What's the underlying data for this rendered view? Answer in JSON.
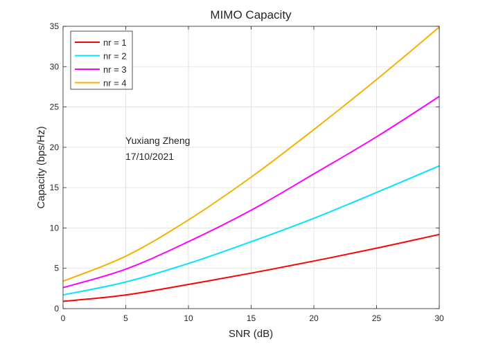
{
  "chart_data": {
    "type": "line",
    "title": "MIMO Capacity",
    "xlabel": "SNR (dB)",
    "ylabel": "Capacity (bps/Hz)",
    "xlim": [
      0,
      30
    ],
    "ylim": [
      0,
      35
    ],
    "xticks": [
      0,
      5,
      10,
      15,
      20,
      25,
      30
    ],
    "yticks": [
      0,
      5,
      10,
      15,
      20,
      25,
      30,
      35
    ],
    "grid": true,
    "legend_location": "top-left",
    "annotations": [
      "Yuxiang Zheng",
      "17/10/2021"
    ],
    "x": [
      0,
      5,
      10,
      15,
      20,
      25,
      30
    ],
    "series": [
      {
        "name": "nr = 1",
        "color": "#ff0000",
        "values": [
          0.9,
          1.7,
          3.0,
          4.4,
          5.9,
          7.5,
          9.2
        ]
      },
      {
        "name": "nr = 2",
        "color": "#00e5ff",
        "values": [
          1.7,
          3.3,
          5.6,
          8.3,
          11.2,
          14.4,
          17.7
        ]
      },
      {
        "name": "nr = 3",
        "color": "#ff00ff",
        "values": [
          2.6,
          4.9,
          8.3,
          12.2,
          16.7,
          21.3,
          26.3
        ]
      },
      {
        "name": "nr = 4",
        "color": "#f5b000",
        "values": [
          3.4,
          6.5,
          11.0,
          16.3,
          22.2,
          28.4,
          34.9
        ]
      }
    ]
  }
}
